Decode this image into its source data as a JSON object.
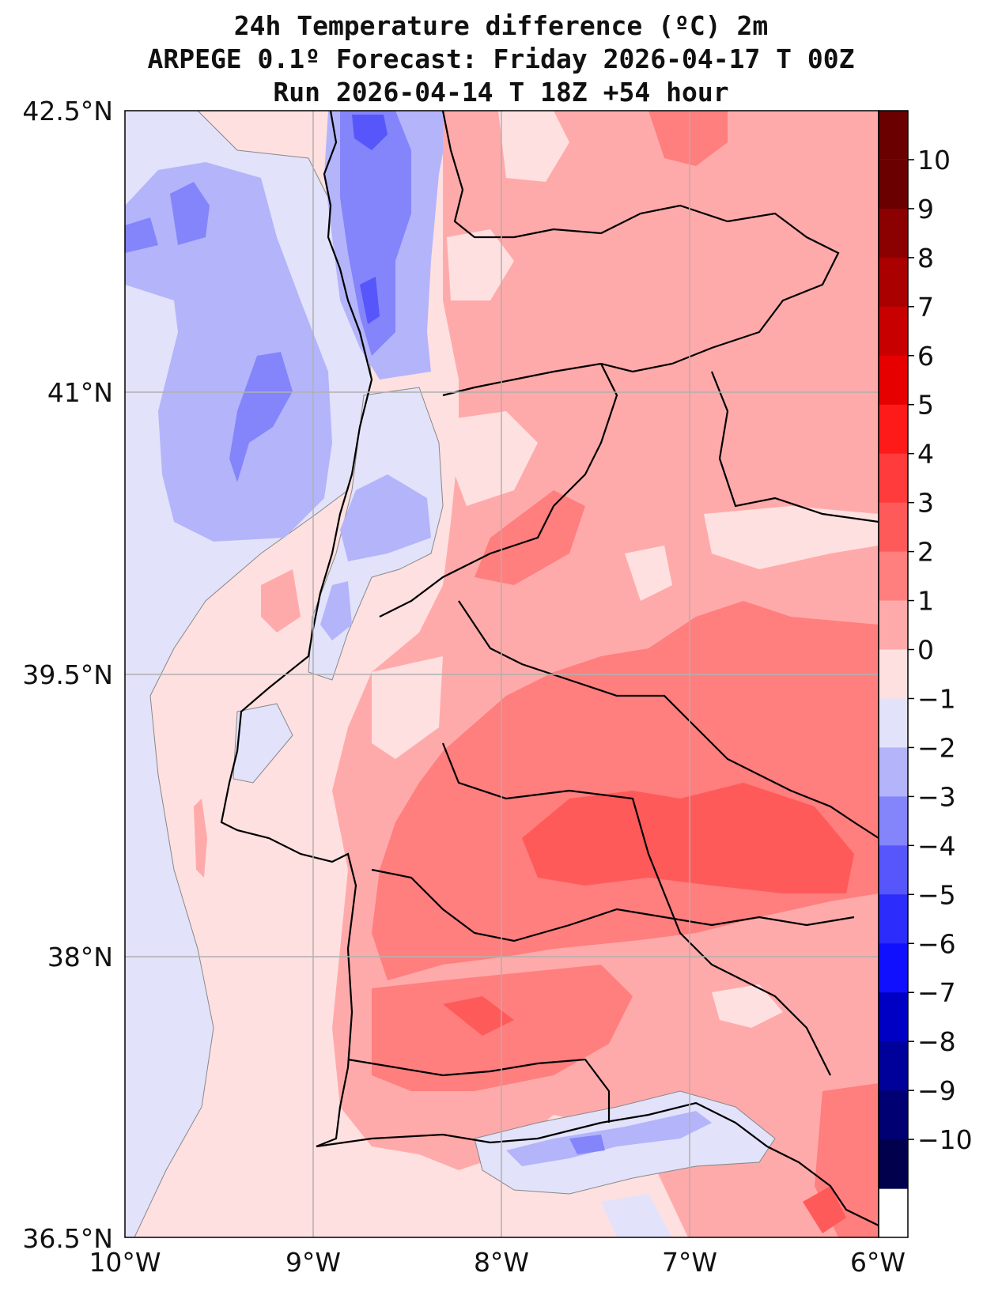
{
  "title": {
    "line1": "24h Temperature difference (ºC) 2m",
    "line2": "ARPEGE 0.1º Forecast: Friday 2026-04-17 T 00Z",
    "line3": "Run 2026-04-14 T 18Z +54 hour"
  },
  "map": {
    "lat_labels": [
      "42.5°N",
      "41°N",
      "39.5°N",
      "38°N",
      "36.5°N"
    ],
    "lon_labels": [
      "10°W",
      "9°W",
      "8°W",
      "7°W",
      "6°W"
    ],
    "lat_range": [
      36.5,
      42.5
    ],
    "lon_range": [
      -10,
      -6
    ]
  },
  "colorbar": {
    "labels": [
      "10",
      "9",
      "8",
      "7",
      "6",
      "5",
      "4",
      "3",
      "2",
      "1",
      "0",
      "−1",
      "−2",
      "−3",
      "−4",
      "−5",
      "−6",
      "−7",
      "−8",
      "−9",
      "−10"
    ],
    "colors": [
      "#6b0000",
      "#8b0000",
      "#aa0000",
      "#c80000",
      "#e60000",
      "#ff1a1a",
      "#ff3b3b",
      "#ff5a5a",
      "#ff7e7e",
      "#ffaaaa",
      "#ffe0e0",
      "#e2e2fa",
      "#b4b4fb",
      "#8484fb",
      "#5656fb",
      "#2c2cfb",
      "#1010ff",
      "#0000c4",
      "#00009a",
      "#000073",
      "#00004c"
    ]
  }
}
